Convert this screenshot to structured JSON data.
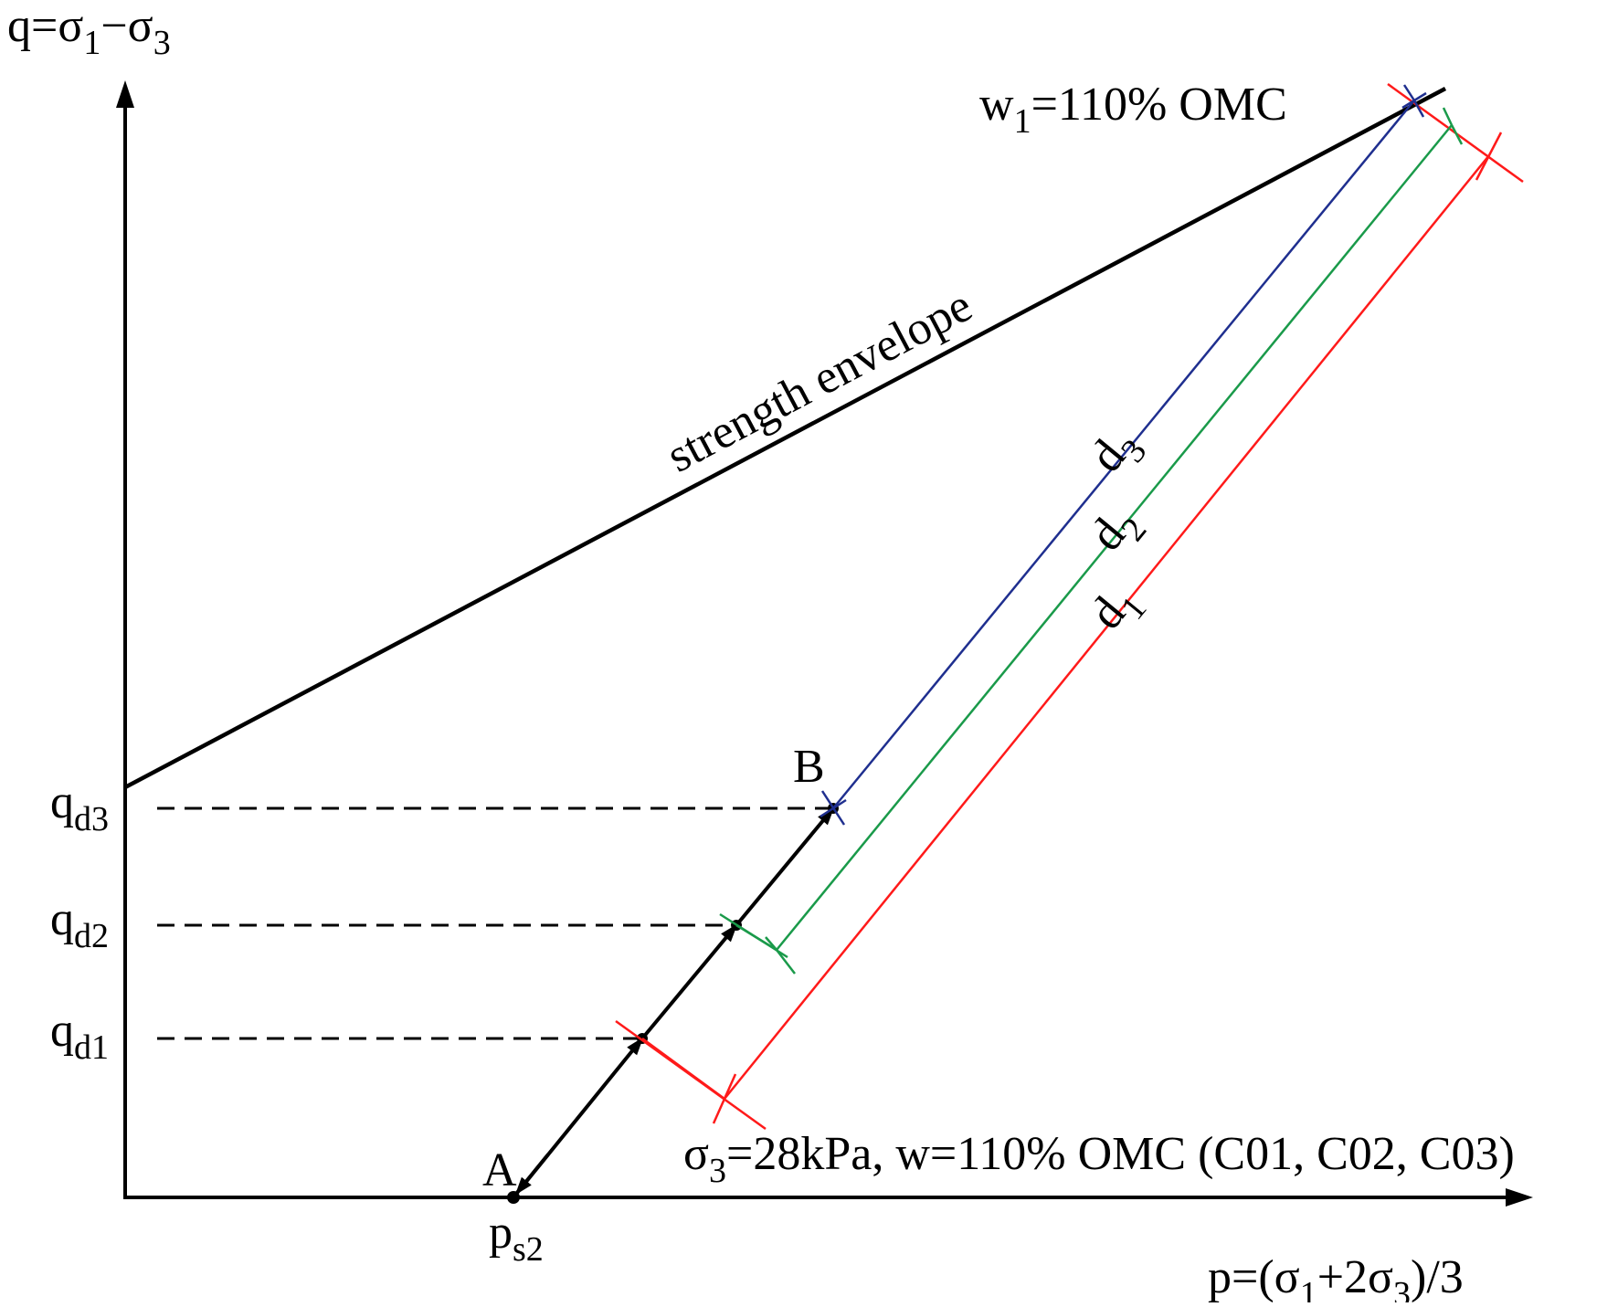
{
  "axes": {
    "y_label": {
      "base": "q=σ",
      "s1": "1",
      "mid": "−σ",
      "s2": "3"
    },
    "x_label": {
      "base": "p=(σ",
      "s1": "1",
      "mid": "+2σ",
      "s2": "3",
      "tail": ")/3"
    }
  },
  "envelope": {
    "label": "strength envelope",
    "color": "#000000"
  },
  "moisture": {
    "base": "w",
    "sub": "1",
    "text": "=110% OMC"
  },
  "condition": {
    "sigma": "σ",
    "sub": "3",
    "text": "=28kPa, w=110% OMC (C01, C02, C03)"
  },
  "points": {
    "A": "A",
    "B": "B",
    "ps2": {
      "base": "p",
      "sub": "s2"
    }
  },
  "levels": [
    {
      "base": "q",
      "sub": "d3"
    },
    {
      "base": "q",
      "sub": "d2"
    },
    {
      "base": "q",
      "sub": "d1"
    }
  ],
  "distances": [
    {
      "base": "d",
      "sub": "3",
      "color": "#1f2f8f"
    },
    {
      "base": "d",
      "sub": "2",
      "color": "#1a9a4a"
    },
    {
      "base": "d",
      "sub": "1",
      "color": "#ff1a1a"
    }
  ]
}
